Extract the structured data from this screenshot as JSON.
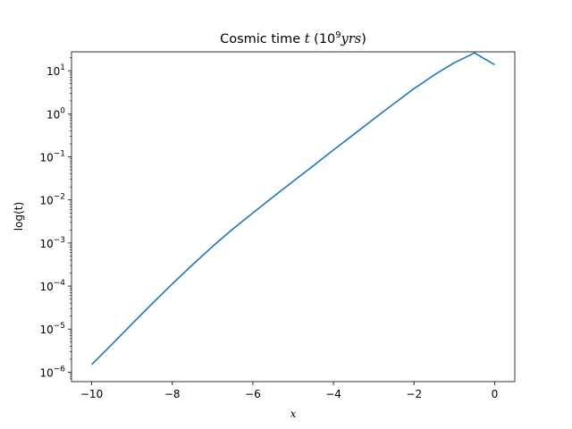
{
  "chart_data": {
    "type": "line",
    "title": {
      "prefix": "Cosmic time ",
      "var": "t",
      "paren_open": " (10",
      "exp": "9",
      "unit": "yrs",
      "paren_close": ")"
    },
    "xlabel": "x",
    "ylabel": "log(t)",
    "xlim": [
      -10.5,
      0.5
    ],
    "ylim_log10": [
      -6.22,
      1.44
    ],
    "yscale": "log",
    "grid": false,
    "x_ticks": [
      -10,
      -8,
      -6,
      -4,
      -2,
      0
    ],
    "x_tick_labels": [
      "−10",
      "−8",
      "−6",
      "−4",
      "−2",
      "0"
    ],
    "y_ticks_exp": [
      -6,
      -5,
      -4,
      -3,
      -2,
      -1,
      0,
      1
    ],
    "y_tick_labels": [
      "10",
      "10",
      "10",
      "10",
      "10",
      "10",
      "10",
      "10"
    ],
    "y_tick_label_exps": [
      "−6",
      "−5",
      "−4",
      "−3",
      "−2",
      "−1",
      "0",
      "1"
    ],
    "series": [
      {
        "color": "#1f77b4",
        "x": [
          -10,
          -9.5,
          -9,
          -8.5,
          -8,
          -7.5,
          -7,
          -6.5,
          -6,
          -5.5,
          -5,
          -4.5,
          -4,
          -3.5,
          -3,
          -2.5,
          -2,
          -1.5,
          -1,
          -0.5,
          0
        ],
        "y": [
          1.5e-06,
          4.4e-06,
          1.32e-05,
          3.9e-05,
          0.000112,
          0.00031,
          0.00083,
          0.0021,
          0.005,
          0.0117,
          0.027,
          0.062,
          0.145,
          0.33,
          0.76,
          1.72,
          3.85,
          8.0,
          15.4,
          26.0,
          13.8
        ]
      }
    ]
  }
}
